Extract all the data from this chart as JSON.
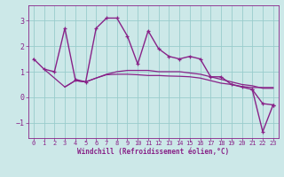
{
  "title": "",
  "xlabel": "Windchill (Refroidissement éolien,°C)",
  "background_color": "#cce8e8",
  "line_color": "#882288",
  "grid_color": "#99cccc",
  "xlim": [
    -0.5,
    23.5
  ],
  "ylim": [
    -1.6,
    3.6
  ],
  "yticks": [
    -1,
    0,
    1,
    2,
    3
  ],
  "xticks": [
    0,
    1,
    2,
    3,
    4,
    5,
    6,
    7,
    8,
    9,
    10,
    11,
    12,
    13,
    14,
    15,
    16,
    17,
    18,
    19,
    20,
    21,
    22,
    23
  ],
  "series": [
    {
      "x": [
        0,
        1,
        2,
        3,
        4,
        5,
        6,
        7,
        8,
        9,
        10,
        11,
        12,
        13,
        14,
        15,
        16,
        17,
        18,
        19,
        20,
        21,
        22,
        23
      ],
      "y": [
        1.5,
        1.1,
        1.0,
        2.7,
        0.7,
        0.6,
        2.7,
        3.1,
        3.1,
        2.4,
        1.3,
        2.6,
        1.9,
        1.6,
        1.5,
        1.6,
        1.5,
        0.8,
        0.8,
        0.5,
        0.4,
        0.3,
        -0.25,
        -0.3
      ],
      "marker": true,
      "linewidth": 1.0
    },
    {
      "x": [
        1,
        3,
        4,
        5,
        6,
        7,
        8,
        9,
        10,
        11,
        12,
        13,
        14,
        15,
        16,
        17,
        18,
        19,
        20,
        21,
        22,
        23
      ],
      "y": [
        1.1,
        0.4,
        0.65,
        0.6,
        0.75,
        0.9,
        1.0,
        1.05,
        1.05,
        1.05,
        1.0,
        1.0,
        1.0,
        0.95,
        0.9,
        0.8,
        0.7,
        0.6,
        0.5,
        0.45,
        0.35,
        0.35
      ],
      "marker": false,
      "linewidth": 0.9
    },
    {
      "x": [
        3,
        4,
        5,
        6,
        7,
        8,
        9,
        10,
        11,
        12,
        13,
        14,
        15,
        16,
        17,
        18,
        19,
        20,
        21,
        22,
        23
      ],
      "y": [
        0.4,
        0.65,
        0.6,
        0.75,
        0.88,
        0.9,
        0.9,
        0.88,
        0.85,
        0.85,
        0.83,
        0.82,
        0.8,
        0.75,
        0.65,
        0.55,
        0.5,
        0.42,
        0.38,
        0.38,
        0.38
      ],
      "marker": false,
      "linewidth": 0.9
    },
    {
      "x": [
        21,
        22,
        23
      ],
      "y": [
        0.3,
        -1.35,
        -0.3
      ],
      "marker": true,
      "linewidth": 1.0
    }
  ]
}
